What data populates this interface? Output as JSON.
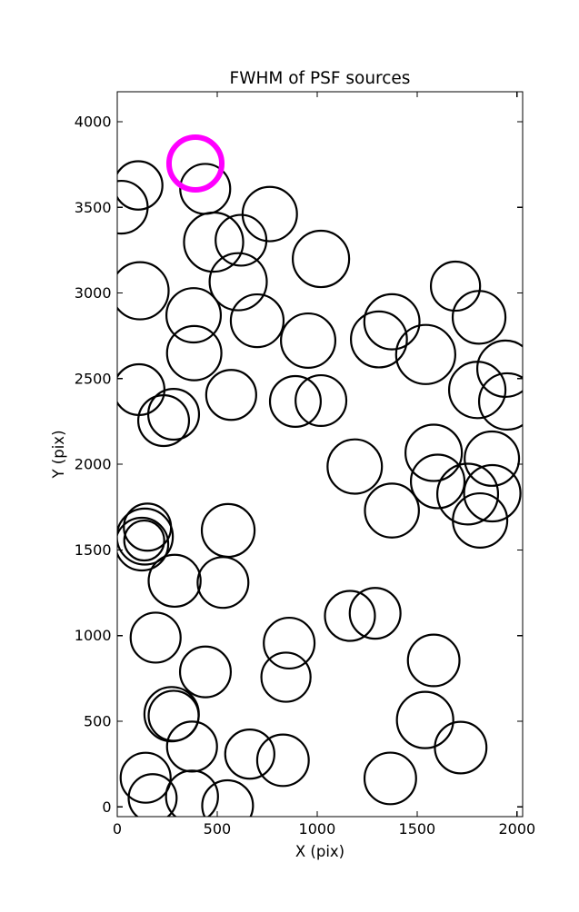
{
  "figure": {
    "background_color": "#ffffff",
    "axis_color": "#000000"
  },
  "chart_data": {
    "type": "scatter",
    "title": "FWHM of PSF sources",
    "xlabel": "X (pix)",
    "ylabel": "Y (pix)",
    "xlim": [
      0,
      2028
    ],
    "ylim": [
      -57,
      4175
    ],
    "xticks": [
      0,
      500,
      1000,
      1500,
      2000
    ],
    "yticks": [
      0,
      500,
      1000,
      1500,
      2000,
      2500,
      3000,
      3500,
      4000
    ],
    "grid": false,
    "legend": "none",
    "marker_style": {
      "fill": "none",
      "color": "#000000",
      "stroke_px": 2.2
    },
    "highlight_style": {
      "fill": "none",
      "color": "#ff00ff",
      "stroke_px": 6
    },
    "radius_note": "circle radius r is proportional to source FWHM, given in X-axis data units",
    "highlighted_source": {
      "x": 391,
      "y": 3756,
      "r": 132
    },
    "sources": [
      {
        "x": 105,
        "y": 3628,
        "r": 121
      },
      {
        "x": 20,
        "y": 3501,
        "r": 132
      },
      {
        "x": 440,
        "y": 3608,
        "r": 125
      },
      {
        "x": 763,
        "y": 3461,
        "r": 136
      },
      {
        "x": 482,
        "y": 3297,
        "r": 148
      },
      {
        "x": 619,
        "y": 3308,
        "r": 127
      },
      {
        "x": 605,
        "y": 3066,
        "r": 143
      },
      {
        "x": 1019,
        "y": 3199,
        "r": 141
      },
      {
        "x": 114,
        "y": 3013,
        "r": 143
      },
      {
        "x": 382,
        "y": 2870,
        "r": 136
      },
      {
        "x": 385,
        "y": 2649,
        "r": 136
      },
      {
        "x": 700,
        "y": 2838,
        "r": 132
      },
      {
        "x": 955,
        "y": 2722,
        "r": 136
      },
      {
        "x": 109,
        "y": 2436,
        "r": 127
      },
      {
        "x": 282,
        "y": 2292,
        "r": 127
      },
      {
        "x": 232,
        "y": 2255,
        "r": 127
      },
      {
        "x": 570,
        "y": 2405,
        "r": 125
      },
      {
        "x": 891,
        "y": 2367,
        "r": 127
      },
      {
        "x": 1019,
        "y": 2372,
        "r": 127
      },
      {
        "x": 1692,
        "y": 3040,
        "r": 123
      },
      {
        "x": 1810,
        "y": 2858,
        "r": 132
      },
      {
        "x": 1374,
        "y": 2832,
        "r": 138
      },
      {
        "x": 1309,
        "y": 2729,
        "r": 140
      },
      {
        "x": 1543,
        "y": 2641,
        "r": 148
      },
      {
        "x": 1942,
        "y": 2558,
        "r": 141
      },
      {
        "x": 1951,
        "y": 2367,
        "r": 141
      },
      {
        "x": 1801,
        "y": 2434,
        "r": 141
      },
      {
        "x": 1583,
        "y": 2067,
        "r": 141
      },
      {
        "x": 1603,
        "y": 1900,
        "r": 134
      },
      {
        "x": 1874,
        "y": 2033,
        "r": 136
      },
      {
        "x": 1753,
        "y": 1826,
        "r": 152
      },
      {
        "x": 1876,
        "y": 1831,
        "r": 141
      },
      {
        "x": 1815,
        "y": 1672,
        "r": 136
      },
      {
        "x": 1374,
        "y": 1730,
        "r": 135
      },
      {
        "x": 1188,
        "y": 1987,
        "r": 136
      },
      {
        "x": 1164,
        "y": 1115,
        "r": 125
      },
      {
        "x": 1290,
        "y": 1130,
        "r": 127
      },
      {
        "x": 151,
        "y": 1633,
        "r": 118
      },
      {
        "x": 138,
        "y": 1578,
        "r": 140
      },
      {
        "x": 135,
        "y": 1555,
        "r": 100
      },
      {
        "x": 123,
        "y": 1534,
        "r": 132
      },
      {
        "x": 555,
        "y": 1614,
        "r": 132
      },
      {
        "x": 287,
        "y": 1320,
        "r": 130
      },
      {
        "x": 529,
        "y": 1310,
        "r": 127
      },
      {
        "x": 192,
        "y": 988,
        "r": 125
      },
      {
        "x": 860,
        "y": 956,
        "r": 127
      },
      {
        "x": 844,
        "y": 757,
        "r": 123
      },
      {
        "x": 441,
        "y": 788,
        "r": 127
      },
      {
        "x": 272,
        "y": 541,
        "r": 136
      },
      {
        "x": 282,
        "y": 532,
        "r": 125
      },
      {
        "x": 374,
        "y": 352,
        "r": 125
      },
      {
        "x": 142,
        "y": 170,
        "r": 125
      },
      {
        "x": 177,
        "y": 51,
        "r": 120
      },
      {
        "x": 374,
        "y": 60,
        "r": 130
      },
      {
        "x": 552,
        "y": 7,
        "r": 127
      },
      {
        "x": 663,
        "y": 308,
        "r": 123
      },
      {
        "x": 829,
        "y": 272,
        "r": 129
      },
      {
        "x": 1583,
        "y": 855,
        "r": 129
      },
      {
        "x": 1540,
        "y": 507,
        "r": 141
      },
      {
        "x": 1718,
        "y": 346,
        "r": 129
      },
      {
        "x": 1366,
        "y": 166,
        "r": 129
      }
    ]
  }
}
